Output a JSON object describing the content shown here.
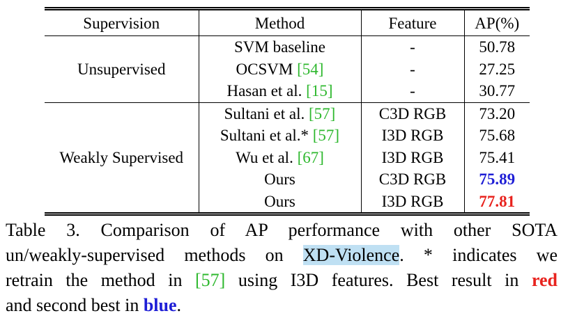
{
  "table": {
    "headers": [
      "Supervision",
      "Method",
      "Feature",
      "AP(%)"
    ],
    "groups": [
      {
        "supervision": "Unsupervised",
        "rows": [
          {
            "method": "SVM baseline",
            "cite": "",
            "feature": "-",
            "ap": "50.78"
          },
          {
            "method": "OCSVM ",
            "cite": "[54]",
            "feature": "-",
            "ap": "27.25"
          },
          {
            "method": "Hasan et al. ",
            "cite": "[15]",
            "feature": "-",
            "ap": "30.77"
          }
        ]
      },
      {
        "supervision": "Weakly Supervised",
        "rows": [
          {
            "method": "Sultani et al. ",
            "cite": "[57]",
            "feature": "C3D RGB",
            "ap": "73.20"
          },
          {
            "method": "Sultani et al.* ",
            "cite": "[57]",
            "feature": "I3D RGB",
            "ap": "75.68"
          },
          {
            "method": "Wu et al. ",
            "cite": "[67]",
            "feature": "I3D RGB",
            "ap": "75.41"
          },
          {
            "method": "Ours",
            "cite": "",
            "feature": "C3D RGB",
            "ap": "75.89"
          },
          {
            "method": "Ours",
            "cite": "",
            "feature": "I3D RGB",
            "ap": "77.81"
          }
        ]
      }
    ]
  },
  "caption": {
    "line1": "Table 3. Comparison of AP performance with other SOTA",
    "line2_a": "un/weakly-supervised methods on ",
    "line2_highlight": "XD-Violence",
    "line2_b": ".  * indicates we",
    "line3_a": "retrain the method in ",
    "line3_cite": "[57]",
    "line3_b": " using I3D features.  Best result in ",
    "line3_red": "red",
    "line4_a": "and second best in ",
    "line4_blue": "blue",
    "line4_b": "."
  },
  "colors": {
    "best": "#e8231e",
    "second_best": "#1e1ed6",
    "citation": "#2eb82e",
    "highlight": "#bfe0f3"
  }
}
